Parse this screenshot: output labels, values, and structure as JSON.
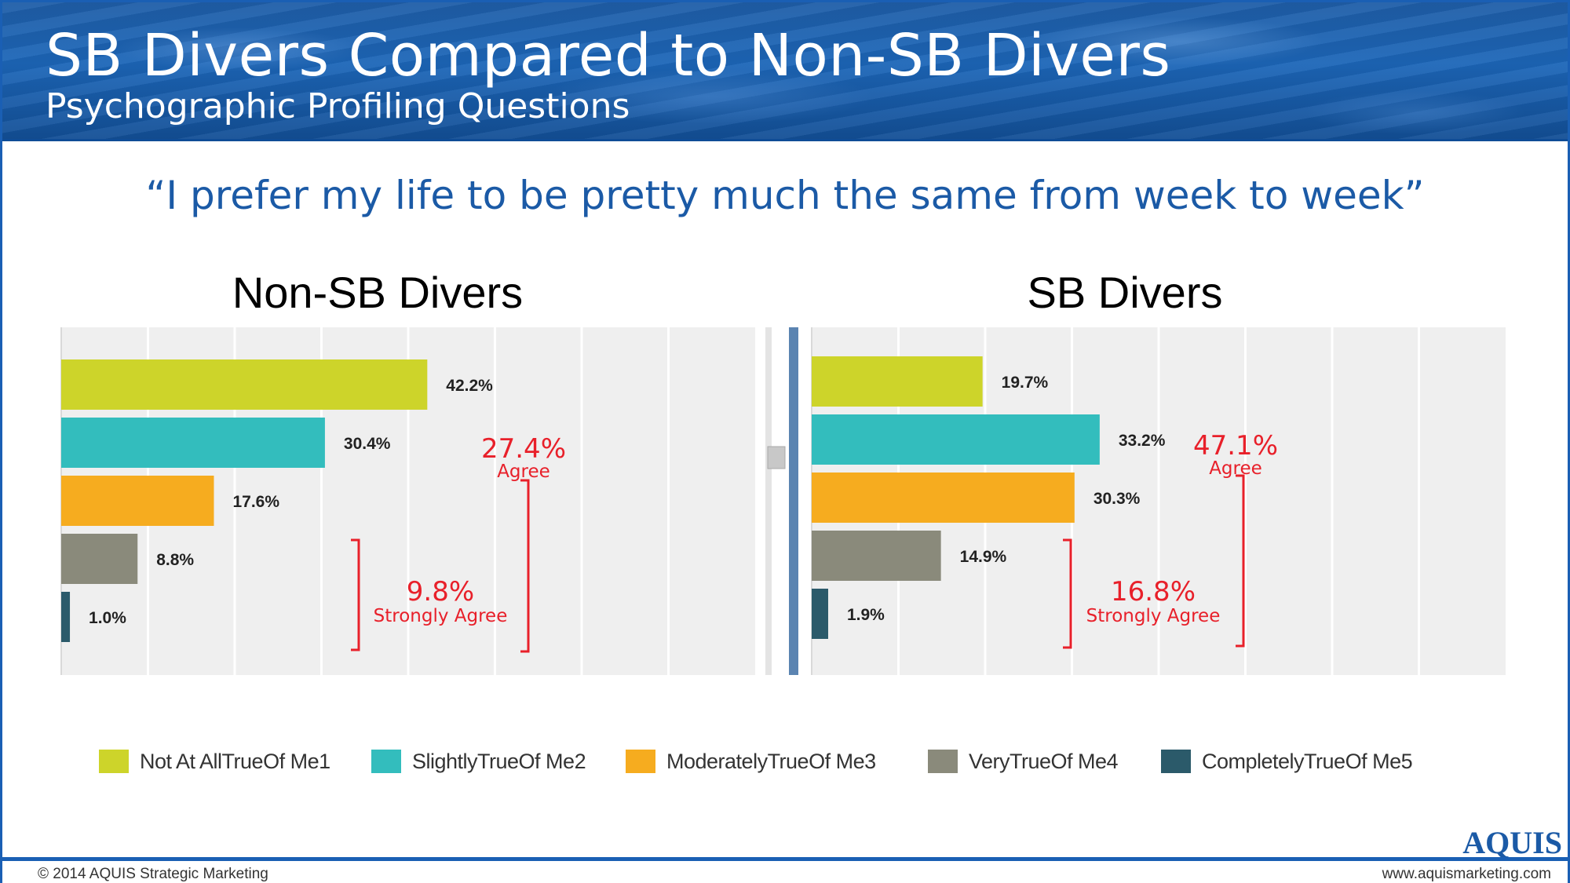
{
  "header": {
    "title": "SB Divers Compared to Non-SB Divers",
    "subtitle": "Psychographic Profiling Questions"
  },
  "question": "“I prefer my life to be pretty much the same from week to week”",
  "colors": {
    "accent_blue": "#1b5aa6",
    "annotation_red": "#e8202a",
    "plot_bg": "#efefef",
    "divider": "#5b84b1"
  },
  "chart_data": [
    {
      "type": "bar",
      "orientation": "horizontal",
      "title": "Non-SB Divers",
      "categories": [
        "Not At AllTrueOf Me1",
        "SlightlyTrueOf Me2",
        "ModeratelyTrueOf Me3",
        "VeryTrueOf Me4",
        "CompletelyTrueOf Me5"
      ],
      "values": [
        42.2,
        30.4,
        17.6,
        8.8,
        1.0
      ],
      "value_labels": [
        "42.2%",
        "30.4%",
        "17.6%",
        "8.8%",
        "1.0%"
      ],
      "xlim": [
        0,
        80
      ],
      "grid": true,
      "annotations": [
        {
          "value": "27.4%",
          "label": "Agree"
        },
        {
          "value": "9.8%",
          "label": "Strongly Agree"
        }
      ]
    },
    {
      "type": "bar",
      "orientation": "horizontal",
      "title": "SB Divers",
      "categories": [
        "Not At AllTrueOf Me1",
        "SlightlyTrueOf Me2",
        "ModeratelyTrueOf Me3",
        "VeryTrueOf Me4",
        "CompletelyTrueOf Me5"
      ],
      "values": [
        19.7,
        33.2,
        30.3,
        14.9,
        1.9
      ],
      "value_labels": [
        "19.7%",
        "33.2%",
        "30.3%",
        "14.9%",
        "1.9%"
      ],
      "xlim": [
        0,
        80
      ],
      "grid": true,
      "annotations": [
        {
          "value": "47.1%",
          "label": "Agree"
        },
        {
          "value": "16.8%",
          "label": "Strongly Agree"
        }
      ]
    }
  ],
  "legend": [
    {
      "label": "Not At AllTrueOf Me1",
      "color": "#cdd42a"
    },
    {
      "label": "SlightlyTrueOf Me2",
      "color": "#33bdbd"
    },
    {
      "label": "ModeratelyTrueOf Me3",
      "color": "#f6ac1f"
    },
    {
      "label": "VeryTrueOf Me4",
      "color": "#8a8a7b"
    },
    {
      "label": "CompletelyTrueOf Me5",
      "color": "#2b5a6a"
    }
  ],
  "logo": "AQUIS",
  "footer": {
    "copyright": "© 2014 AQUIS Strategic Marketing",
    "website": "www.aquismarketing.com"
  }
}
